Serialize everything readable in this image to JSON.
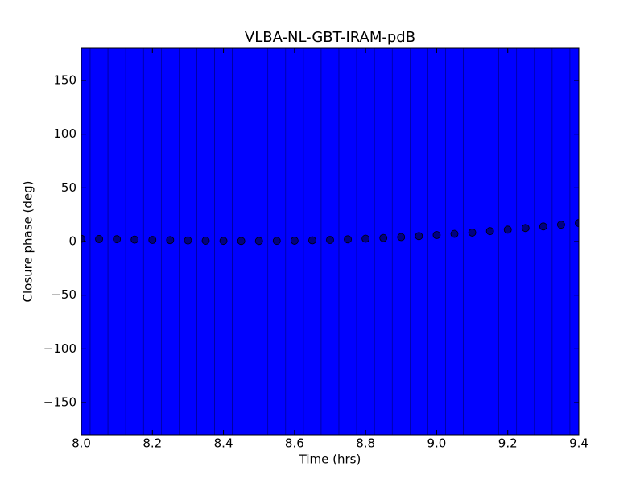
{
  "chart_data": {
    "type": "errorbar",
    "title": "VLBA-NL-GBT-IRAM-pdB",
    "xlabel": "Time (hrs)",
    "ylabel": "Closure phase (deg)",
    "x": [
      8.0,
      8.05,
      8.1,
      8.15,
      8.2,
      8.25,
      8.3,
      8.35,
      8.4,
      8.45,
      8.5,
      8.55,
      8.6,
      8.65,
      8.7,
      8.75,
      8.8,
      8.85,
      8.9,
      8.95,
      9.0,
      9.05,
      9.1,
      9.15,
      9.2,
      9.25,
      9.3,
      9.35,
      9.4
    ],
    "values": [
      2.5,
      2.3,
      2.1,
      1.8,
      1.5,
      1.3,
      1.0,
      0.8,
      0.6,
      0.5,
      0.5,
      0.6,
      0.8,
      1.1,
      1.5,
      2.0,
      2.6,
      3.3,
      4.1,
      5.0,
      6.0,
      7.1,
      8.3,
      9.6,
      11.0,
      12.5,
      14.0,
      15.6,
      17.2
    ],
    "yerr": [
      200,
      200,
      200,
      200,
      200,
      200,
      200,
      200,
      200,
      200,
      200,
      200,
      200,
      200,
      200,
      200,
      200,
      200,
      200,
      200,
      200,
      200,
      200,
      200,
      200,
      200,
      200,
      200,
      200
    ],
    "color": "#0000ff",
    "marker_color": "#000080",
    "xlim": [
      8.0,
      9.4
    ],
    "ylim": [
      -180,
      180
    ],
    "xticks": [
      {
        "value": 8.0,
        "label": "8.0"
      },
      8.2,
      8.4,
      8.6,
      8.8,
      {
        "value": 9.0,
        "label": "9.0"
      },
      9.2,
      9.4
    ],
    "yticks": [
      {
        "value": -150,
        "label": "−150"
      },
      {
        "value": -100,
        "label": "−100"
      },
      {
        "value": -50,
        "label": "−50"
      },
      0,
      50,
      100,
      150
    ],
    "grid": false
  }
}
